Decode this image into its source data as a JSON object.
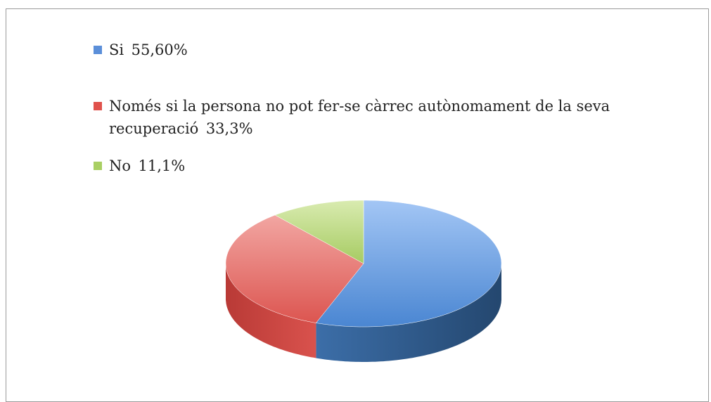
{
  "chart_data": {
    "type": "pie",
    "categories": [
      "Si",
      "Només si la persona no pot fer-se càrrec autònomament de la seva recuperació",
      "No"
    ],
    "values": [
      55.6,
      33.3,
      11.1
    ],
    "value_labels": [
      "55,60%",
      "33,3%",
      "11,1%"
    ],
    "colors": [
      "#5b8fd9",
      "#e0524c",
      "#a9cf63"
    ]
  }
}
